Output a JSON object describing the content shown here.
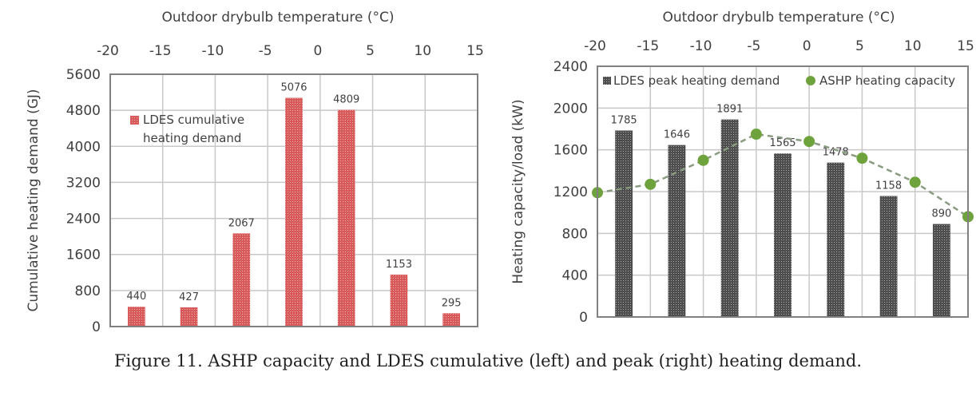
{
  "caption": "Figure 11. ASHP capacity and LDES cumulative (left) and peak (right) heating demand.",
  "colors": {
    "cumulative_bar": "#d85b5c",
    "peak_bar": "#5a5a5a",
    "ashp_line": "#6ea23c",
    "grid": "#c8c8c8",
    "frame": "#808080"
  },
  "chart_data": [
    {
      "type": "bar",
      "title": "",
      "top_axis_label": "Outdoor drybulb temperature (°C)",
      "top_ticks": [
        "-20",
        "-15",
        "-10",
        "-5",
        "0",
        "5",
        "10",
        "15"
      ],
      "xlabel": "Outdoor drybulb temperature (°C)",
      "ylabel": "Cumulative heating demand (GJ)",
      "ylim": [
        0,
        5600
      ],
      "yticks": [
        "0",
        "800",
        "1600",
        "2400",
        "3200",
        "4000",
        "4800",
        "5600"
      ],
      "grid": true,
      "legend": {
        "position": "top-left",
        "entries": [
          "LDES cumulative heating demand"
        ],
        "lines": [
          "LDES cumulative",
          "heating demand"
        ]
      },
      "categories": [
        "-20 to -15",
        "-15 to -10",
        "-10 to -5",
        "-5 to 0",
        "0 to 5",
        "5 to 10",
        "10 to 15"
      ],
      "series": [
        {
          "name": "LDES cumulative heating demand",
          "values": [
            440,
            427,
            2067,
            5076,
            4809,
            1153,
            295
          ],
          "labels": [
            "440",
            "427",
            "2067",
            "5076",
            "4809",
            "1153",
            "295"
          ]
        }
      ]
    },
    {
      "type": "bar+line",
      "title": "",
      "top_axis_label": "Outdoor drybulb temperature (°C)",
      "top_ticks": [
        "-20",
        "-15",
        "-10",
        "-5",
        "0",
        "5",
        "10",
        "15"
      ],
      "xlabel": "Outdoor drybulb temperature (°C)",
      "ylabel": "Heating capacity/load (kW)",
      "ylim": [
        0,
        2400
      ],
      "yticks": [
        "0",
        "400",
        "800",
        "1200",
        "1600",
        "2000",
        "2400"
      ],
      "grid": true,
      "legend": {
        "position": "top",
        "entries": [
          "LDES peak heating demand",
          "ASHP heating capacity"
        ]
      },
      "categories": [
        "-20 to -15",
        "-15 to -10",
        "-10 to -5",
        "-5 to 0",
        "0 to 5",
        "5 to 10",
        "10 to 15"
      ],
      "series": [
        {
          "name": "LDES peak heating demand",
          "type": "bar",
          "values": [
            1785,
            1646,
            1891,
            1565,
            1478,
            1158,
            890
          ],
          "labels": [
            "1785",
            "1646",
            "1891",
            "1565",
            "1478",
            "1158",
            "890"
          ]
        },
        {
          "name": "ASHP heating capacity",
          "type": "line-dashed-markers",
          "x": [
            -20,
            -15,
            -10,
            -5,
            0,
            5,
            10,
            15
          ],
          "values": [
            1190,
            1270,
            1500,
            1750,
            1680,
            1520,
            1290,
            960
          ]
        }
      ]
    }
  ]
}
